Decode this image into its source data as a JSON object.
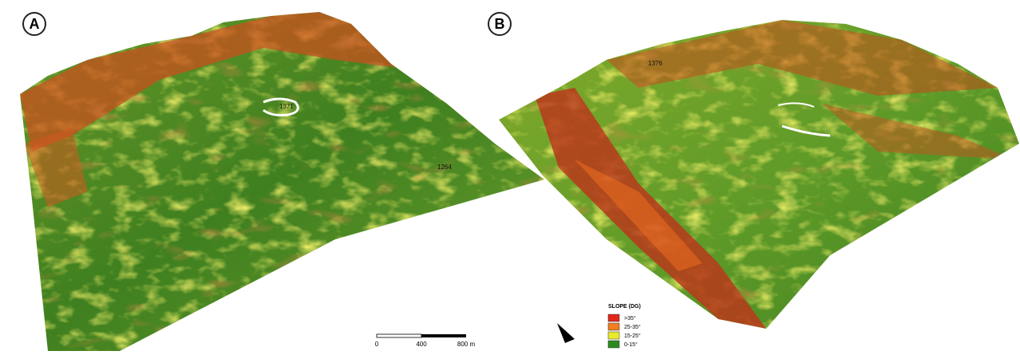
{
  "panels": [
    {
      "label": "A",
      "elevations": [
        "1371",
        "1264"
      ]
    },
    {
      "label": "B",
      "elevations": [
        "1376"
      ]
    }
  ],
  "scale_bar": {
    "labels": [
      "0",
      "400",
      "800 m"
    ]
  },
  "legend": {
    "title": "SLOPE (DG)",
    "items": [
      {
        "label": ">35°",
        "color": "#e3261b"
      },
      {
        "label": "25-35°",
        "color": "#f07f1f"
      },
      {
        "label": "15-25°",
        "color": "#e9e930"
      },
      {
        "label": "0-15°",
        "color": "#2a8a1e"
      }
    ]
  }
}
